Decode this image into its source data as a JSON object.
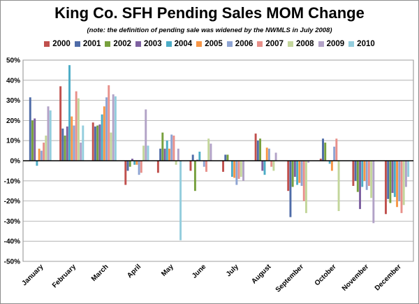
{
  "chart_data": {
    "type": "bar",
    "title": "King Co. SFH Pending Sales MOM Change",
    "subtitle": "(note: the definition of pending sale was widened by the NWMLS in July 2008)",
    "xlabel": "",
    "ylabel": "",
    "ylim": [
      -50,
      50
    ],
    "y_tick_step": 10,
    "y_tick_suffix": "%",
    "grid": true,
    "legend_position": "top",
    "categories": [
      "January",
      "February",
      "March",
      "April",
      "May",
      "June",
      "July",
      "August",
      "September",
      "October",
      "November",
      "December"
    ],
    "series": [
      {
        "name": "2000",
        "color": "#c0504d",
        "values": [
          null,
          37,
          19,
          -12,
          -6,
          -5,
          -5.5,
          13.5,
          -15,
          1,
          -12.5,
          -26.5
        ]
      },
      {
        "name": "2001",
        "color": "#4f6ca8",
        "values": [
          31.5,
          16,
          17,
          -5,
          6,
          3,
          3,
          10,
          -28,
          11,
          -10,
          -19
        ]
      },
      {
        "name": "2002",
        "color": "#77a03d",
        "values": [
          20,
          12.5,
          17.5,
          -3,
          14,
          -15,
          3,
          11,
          -13,
          9,
          -15.5,
          -21
        ]
      },
      {
        "name": "2003",
        "color": "#7d60a0",
        "values": [
          21,
          17,
          18,
          1,
          6,
          0.5,
          0,
          -5,
          -8,
          0,
          -24,
          -16
        ]
      },
      {
        "name": "2004",
        "color": "#4bacc6",
        "values": [
          -2.5,
          47.5,
          23,
          -2,
          10,
          4.5,
          -8,
          -7,
          -12,
          -1.5,
          -13,
          -18
        ]
      },
      {
        "name": "2005",
        "color": "#f79646",
        "values": [
          6,
          22,
          27,
          -2,
          6,
          0,
          -8.5,
          6.5,
          -11,
          -5,
          -10,
          -23
        ]
      },
      {
        "name": "2006",
        "color": "#8ea4d3",
        "values": [
          5,
          17.5,
          31.5,
          -7,
          13,
          -3,
          -12,
          6,
          -12.5,
          7,
          -14.5,
          -20
        ]
      },
      {
        "name": "2007",
        "color": "#e8908a",
        "values": [
          9,
          34.5,
          37.5,
          -6,
          12.5,
          -5.5,
          -9,
          -3,
          -20,
          11,
          -12.5,
          -26
        ]
      },
      {
        "name": "2008",
        "color": "#c3d69b",
        "values": [
          12.5,
          31,
          14,
          7.5,
          -2,
          11,
          -8,
          -5,
          -26,
          -25,
          -18.5,
          -22
        ]
      },
      {
        "name": "2009",
        "color": "#b2a2c7",
        "values": [
          27,
          9,
          33,
          25.5,
          6,
          8.5,
          -10,
          4,
          -1,
          null,
          -31,
          -13
        ]
      },
      {
        "name": "2010",
        "color": "#93cddd",
        "values": [
          25,
          17.5,
          32,
          7.5,
          -39.5,
          null,
          null,
          null,
          null,
          null,
          null,
          -8
        ]
      }
    ]
  }
}
